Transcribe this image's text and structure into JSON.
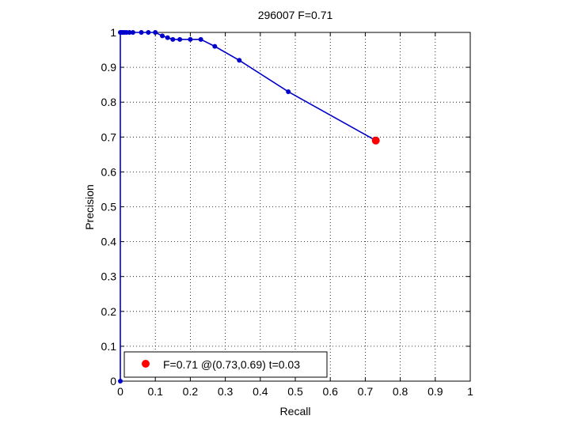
{
  "chart_data": {
    "type": "line",
    "title": "296007 F=0.71",
    "xlabel": "Recall",
    "ylabel": "Precision",
    "xlim": [
      0,
      1
    ],
    "ylim": [
      0,
      1
    ],
    "grid": true,
    "xticks": [
      "0",
      "0.1",
      "0.2",
      "0.3",
      "0.4",
      "0.5",
      "0.6",
      "0.7",
      "0.8",
      "0.9",
      "1"
    ],
    "yticks": [
      "0",
      "0.1",
      "0.2",
      "0.3",
      "0.4",
      "0.5",
      "0.6",
      "0.7",
      "0.8",
      "0.9",
      "1"
    ],
    "series": [
      {
        "color": "#0000cc",
        "x": [
          0.0,
          0.0,
          0.003,
          0.007,
          0.012,
          0.018,
          0.026,
          0.036,
          0.06,
          0.08,
          0.1,
          0.12,
          0.135,
          0.15,
          0.17,
          0.2,
          0.23,
          0.27,
          0.34,
          0.48,
          0.73
        ],
        "y": [
          0.0,
          1.0,
          1.0,
          1.0,
          1.0,
          1.0,
          1.0,
          1.0,
          1.0,
          1.0,
          1.0,
          0.99,
          0.985,
          0.98,
          0.98,
          0.98,
          0.98,
          0.96,
          0.92,
          0.83,
          0.69
        ]
      }
    ],
    "highlight": {
      "x": 0.73,
      "y": 0.69,
      "color": "#ff0000",
      "label": "F=0.71 @(0.73,0.69) t=0.03"
    },
    "legend": {
      "position": "bottom-left",
      "entries": [
        "F=0.71 @(0.73,0.69) t=0.03"
      ]
    }
  }
}
